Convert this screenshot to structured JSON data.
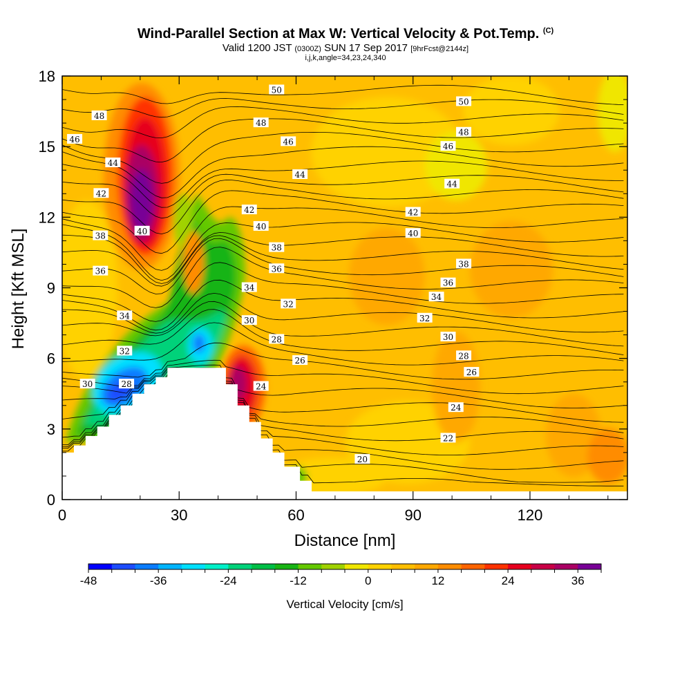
{
  "header": {
    "title": "Wind-Parallel Section at Max W: Vertical Velocity & Pot.Temp.",
    "title_mark": "(C)",
    "valid_prefix": "Valid 1200 JST",
    "valid_utc": "(0300Z)",
    "valid_date": "SUN 17 Sep 2017",
    "forecast": "[9hrFcst@2144z]",
    "indices": "i,j,k,angle=34,23,24,340"
  },
  "chart_data": {
    "type": "heatmap",
    "xlabel": "Distance [nm]",
    "ylabel": "Height [Kft MSL]",
    "xlim": [
      0,
      145
    ],
    "ylim": [
      0,
      18
    ],
    "x_ticks": [
      0,
      30,
      60,
      90,
      120
    ],
    "x_tick_labels": [
      "0",
      "30",
      "60",
      "90",
      "120"
    ],
    "y_ticks": [
      0,
      3,
      6,
      9,
      12,
      15,
      18
    ],
    "y_tick_labels": [
      "0",
      "3",
      "6",
      "9",
      "12",
      "15",
      "18"
    ],
    "colorbar": {
      "label": "Vertical Velocity [cm/s]",
      "min": -48,
      "max": 36,
      "step": 4,
      "tick_labels": [
        "-48",
        "-36",
        "-24",
        "-12",
        "0",
        "12",
        "24",
        "36"
      ],
      "colors": [
        "#0000ff",
        "#1d4cff",
        "#0a7cff",
        "#00b4ff",
        "#00e0ff",
        "#00f0c8",
        "#00d27a",
        "#00be46",
        "#18b414",
        "#64c800",
        "#a0d200",
        "#f0e600",
        "#ffd200",
        "#ffbe00",
        "#ffa800",
        "#ff8c00",
        "#ff6400",
        "#ff3200",
        "#e6001e",
        "#c80046",
        "#aa0064",
        "#780096"
      ]
    },
    "vertical_velocity_features": [
      {
        "kind": "updraft",
        "x_center": 20,
        "y_center": 13.2,
        "peak_cm_s": 36
      },
      {
        "kind": "updraft",
        "x_center": 46,
        "y_center": 5.0,
        "peak_cm_s": 24
      },
      {
        "kind": "downdraft",
        "x_center": 18,
        "y_center": 4.6,
        "peak_cm_s": -40
      },
      {
        "kind": "downdraft",
        "x_center": 35,
        "y_center": 6.7,
        "peak_cm_s": -30
      },
      {
        "kind": "downdraft",
        "x_center": 30,
        "y_center": 9.5,
        "peak_cm_s": -16
      }
    ],
    "terrain": [
      [
        0,
        2.0
      ],
      [
        3,
        2.0
      ],
      [
        3,
        2.3
      ],
      [
        6,
        2.3
      ],
      [
        6,
        2.7
      ],
      [
        9,
        2.7
      ],
      [
        9,
        3.1
      ],
      [
        12,
        3.1
      ],
      [
        12,
        3.6
      ],
      [
        15,
        3.6
      ],
      [
        15,
        4.0
      ],
      [
        18,
        4.0
      ],
      [
        18,
        4.5
      ],
      [
        21,
        4.5
      ],
      [
        21,
        4.9
      ],
      [
        24,
        4.9
      ],
      [
        24,
        5.2
      ],
      [
        27,
        5.2
      ],
      [
        27,
        5.6
      ],
      [
        42,
        5.6
      ],
      [
        42,
        4.9
      ],
      [
        45,
        4.9
      ],
      [
        45,
        4.0
      ],
      [
        48,
        4.0
      ],
      [
        48,
        3.3
      ],
      [
        51,
        3.3
      ],
      [
        51,
        2.6
      ],
      [
        54,
        2.6
      ],
      [
        54,
        2.0
      ],
      [
        57,
        2.0
      ],
      [
        57,
        1.4
      ],
      [
        61,
        1.4
      ],
      [
        61,
        0.8
      ],
      [
        64,
        0.8
      ],
      [
        64,
        0.35
      ],
      [
        66,
        0.35
      ],
      [
        145,
        0.35
      ]
    ],
    "theta_contours": {
      "levels": [
        20,
        21,
        22,
        23,
        24,
        25,
        26,
        27,
        28,
        29,
        30,
        31,
        32,
        33,
        34,
        35,
        36,
        37,
        38,
        39,
        40,
        41,
        42,
        43,
        44,
        45,
        46,
        47,
        48,
        49,
        50,
        51
      ],
      "labels": [
        {
          "text": "50",
          "x": 55,
          "y": 17.4
        },
        {
          "text": "50",
          "x": 103,
          "y": 16.9
        },
        {
          "text": "48",
          "x": 9.5,
          "y": 16.3
        },
        {
          "text": "48",
          "x": 51,
          "y": 16.0
        },
        {
          "text": "48",
          "x": 103,
          "y": 15.6
        },
        {
          "text": "46",
          "x": 3.2,
          "y": 15.3
        },
        {
          "text": "46",
          "x": 58,
          "y": 15.2
        },
        {
          "text": "46",
          "x": 99,
          "y": 15.0
        },
        {
          "text": "44",
          "x": 13,
          "y": 14.3
        },
        {
          "text": "44",
          "x": 61,
          "y": 13.8
        },
        {
          "text": "44",
          "x": 100,
          "y": 13.4
        },
        {
          "text": "42",
          "x": 10,
          "y": 13.0
        },
        {
          "text": "42",
          "x": 48,
          "y": 12.3
        },
        {
          "text": "42",
          "x": 90,
          "y": 12.2
        },
        {
          "text": "40",
          "x": 20.5,
          "y": 11.4
        },
        {
          "text": "40",
          "x": 51,
          "y": 11.6
        },
        {
          "text": "40",
          "x": 90,
          "y": 11.3
        },
        {
          "text": "38",
          "x": 9.8,
          "y": 11.2
        },
        {
          "text": "38",
          "x": 55,
          "y": 10.7
        },
        {
          "text": "38",
          "x": 103,
          "y": 10.0
        },
        {
          "text": "36",
          "x": 9.8,
          "y": 9.7
        },
        {
          "text": "36",
          "x": 55,
          "y": 9.8
        },
        {
          "text": "36",
          "x": 99,
          "y": 9.2
        },
        {
          "text": "34",
          "x": 16,
          "y": 7.8
        },
        {
          "text": "34",
          "x": 48,
          "y": 9.0
        },
        {
          "text": "34",
          "x": 96,
          "y": 8.6
        },
        {
          "text": "32",
          "x": 16,
          "y": 6.3
        },
        {
          "text": "32",
          "x": 58,
          "y": 8.3
        },
        {
          "text": "32",
          "x": 93,
          "y": 7.7
        },
        {
          "text": "30",
          "x": 6.5,
          "y": 4.9
        },
        {
          "text": "30",
          "x": 48,
          "y": 7.6
        },
        {
          "text": "30",
          "x": 99,
          "y": 6.9
        },
        {
          "text": "28",
          "x": 16.5,
          "y": 4.9
        },
        {
          "text": "28",
          "x": 55,
          "y": 6.8
        },
        {
          "text": "28",
          "x": 103,
          "y": 6.1
        },
        {
          "text": "26",
          "x": 61,
          "y": 5.9
        },
        {
          "text": "26",
          "x": 105,
          "y": 5.4
        },
        {
          "text": "24",
          "x": 51,
          "y": 4.8
        },
        {
          "text": "24",
          "x": 101,
          "y": 3.9
        },
        {
          "text": "22",
          "x": 99,
          "y": 2.6
        },
        {
          "text": "20",
          "x": 77,
          "y": 1.7
        }
      ]
    }
  }
}
